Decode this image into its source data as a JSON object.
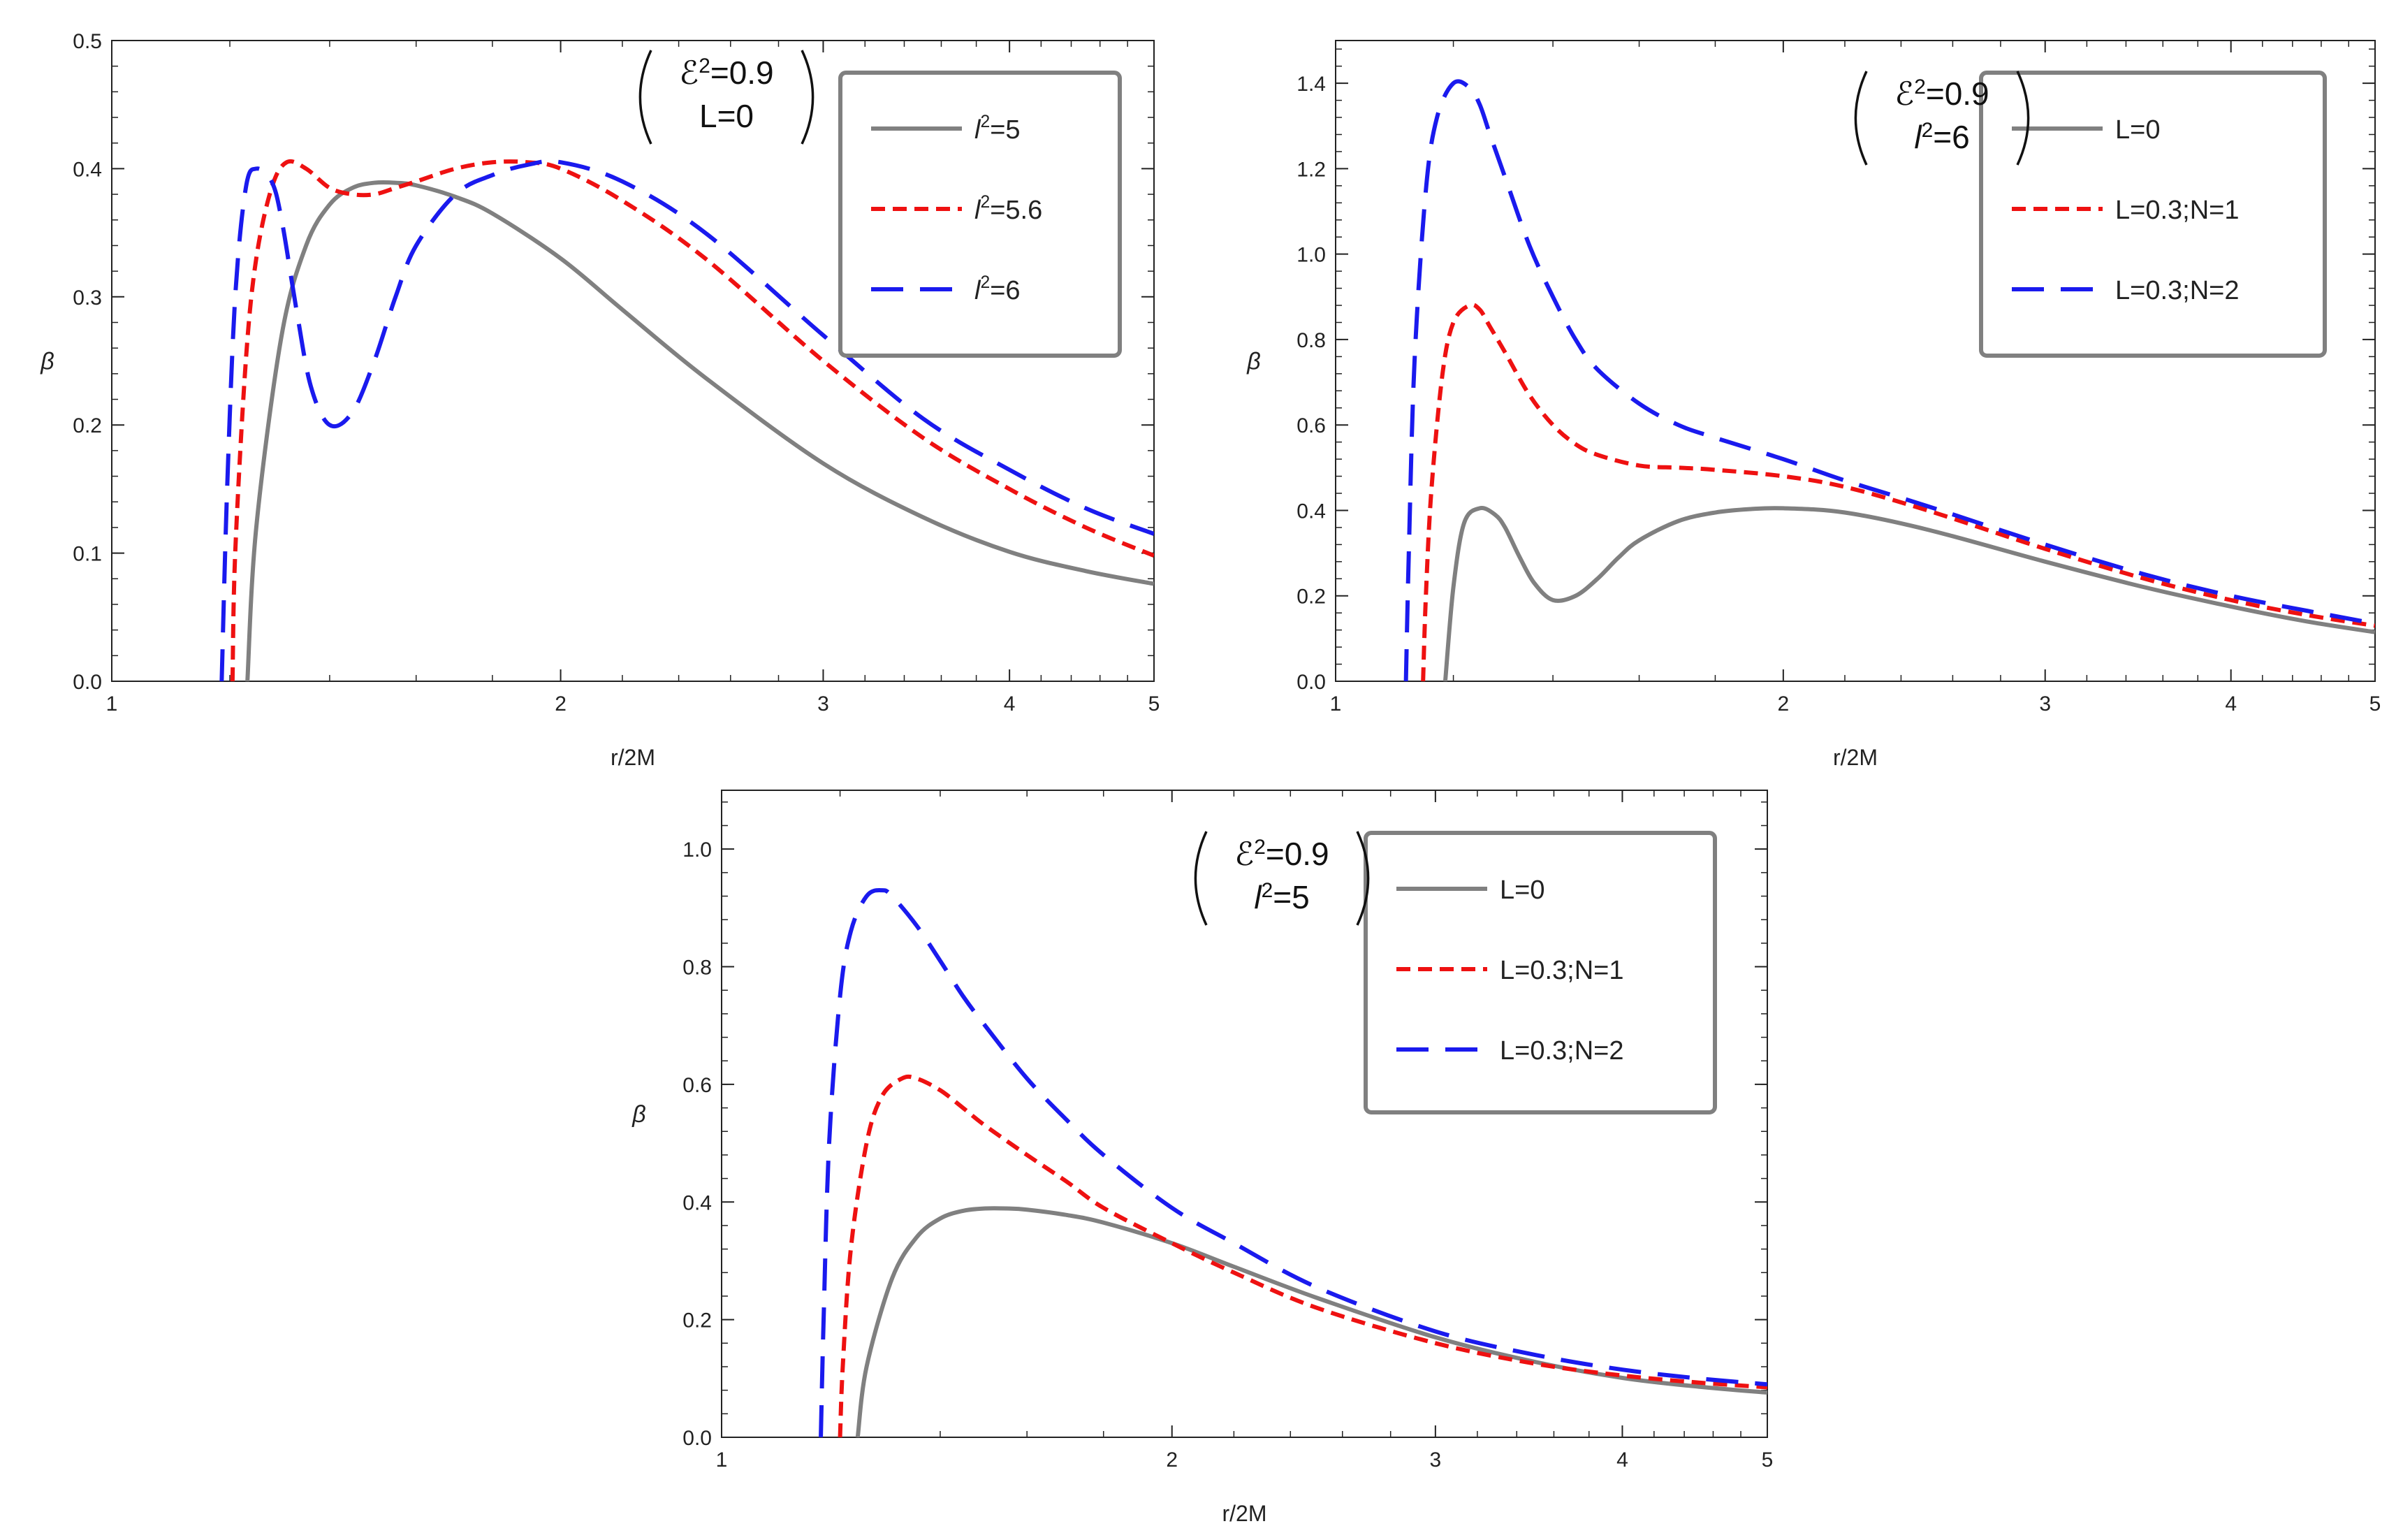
{
  "chart_data": [
    {
      "type": "line",
      "xlabel": "r/2M",
      "ylabel": "β",
      "xscale": "log",
      "xlim": [
        1,
        5
      ],
      "ylim": [
        0,
        0.5
      ],
      "xticks": [
        1,
        2,
        3,
        4,
        5
      ],
      "xtick_labels": [
        "1",
        "2",
        "3",
        "4",
        "5"
      ],
      "yticks": [
        0,
        0.1,
        0.2,
        0.3,
        0.4,
        0.5
      ],
      "ytick_labels": [
        "0.0",
        "0.1",
        "0.2",
        "0.3",
        "0.4",
        "0.5"
      ],
      "annotation": {
        "line1_sym": "ℰ",
        "line1_sup": "2",
        "line1_val": "=0.9",
        "line2": "L=0"
      },
      "legend_position": "top-right",
      "series": [
        {
          "label_sym": "l",
          "label_sup": "2",
          "label_rest": "=5",
          "color": "#808080",
          "style": "solid",
          "x": [
            1.233,
            1.25,
            1.3,
            1.35,
            1.4,
            1.45,
            1.5,
            1.55,
            1.6,
            1.7,
            1.8,
            2.0,
            2.2,
            2.5,
            3.0,
            3.5,
            4.0,
            4.5,
            5.0
          ],
          "y": [
            0.0,
            0.12,
            0.27,
            0.34,
            0.372,
            0.385,
            0.389,
            0.389,
            0.387,
            0.378,
            0.365,
            0.33,
            0.29,
            0.237,
            0.17,
            0.128,
            0.101,
            0.086,
            0.076
          ]
        },
        {
          "label_sym": "l",
          "label_sup": "2",
          "label_rest": "=5.6",
          "color": "#ee1111",
          "style": "short-dash",
          "x": [
            1.205,
            1.21,
            1.23,
            1.25,
            1.28,
            1.31,
            1.35,
            1.4,
            1.45,
            1.5,
            1.55,
            1.6,
            1.7,
            1.8,
            1.9,
            2.0,
            2.2,
            2.5,
            3.0,
            3.5,
            4.0,
            4.5,
            5.0
          ],
          "y": [
            0.0,
            0.1,
            0.25,
            0.33,
            0.385,
            0.405,
            0.4,
            0.385,
            0.38,
            0.38,
            0.385,
            0.39,
            0.4,
            0.405,
            0.405,
            0.4,
            0.375,
            0.33,
            0.25,
            0.19,
            0.15,
            0.12,
            0.098
          ]
        },
        {
          "label_sym": "l",
          "label_sup": "2",
          "label_rest": "=6",
          "color": "#1a1aee",
          "style": "long-dash",
          "x": [
            1.185,
            1.195,
            1.21,
            1.23,
            1.25,
            1.28,
            1.3,
            1.33,
            1.36,
            1.4,
            1.45,
            1.5,
            1.55,
            1.6,
            1.7,
            1.8,
            1.9,
            2.0,
            2.2,
            2.5,
            3.0,
            3.5,
            4.0,
            4.5,
            5.0
          ],
          "y": [
            0.0,
            0.15,
            0.3,
            0.385,
            0.4,
            0.39,
            0.36,
            0.29,
            0.23,
            0.2,
            0.21,
            0.25,
            0.3,
            0.34,
            0.38,
            0.395,
            0.403,
            0.405,
            0.39,
            0.35,
            0.27,
            0.205,
            0.165,
            0.135,
            0.115
          ]
        }
      ]
    },
    {
      "type": "line",
      "xlabel": "r/2M",
      "ylabel": "β",
      "xscale": "log",
      "xlim": [
        1,
        5
      ],
      "ylim": [
        0,
        1.5
      ],
      "xticks": [
        1,
        2,
        3,
        4,
        5
      ],
      "xtick_labels": [
        "1",
        "2",
        "3",
        "4",
        "5"
      ],
      "yticks": [
        0,
        0.2,
        0.4,
        0.6,
        0.8,
        1.0,
        1.2,
        1.4
      ],
      "ytick_labels": [
        "0.0",
        "0.2",
        "0.4",
        "0.6",
        "0.8",
        "1.0",
        "1.2",
        "1.4"
      ],
      "annotation": {
        "line1_sym": "ℰ",
        "line1_sup": "2",
        "line1_val": "=0.9",
        "line2_sym": "l",
        "line2_sup": "2",
        "line2_rest": "=6"
      },
      "legend_position": "top-right",
      "series": [
        {
          "label": "L=0",
          "color": "#808080",
          "style": "solid",
          "x": [
            1.185,
            1.2,
            1.22,
            1.25,
            1.28,
            1.3,
            1.33,
            1.36,
            1.4,
            1.45,
            1.5,
            1.55,
            1.6,
            1.7,
            1.8,
            1.9,
            2.0,
            2.2,
            2.5,
            3.0,
            3.5,
            4.0,
            4.5,
            5.0
          ],
          "y": [
            0.0,
            0.22,
            0.37,
            0.405,
            0.39,
            0.36,
            0.29,
            0.23,
            0.19,
            0.2,
            0.24,
            0.29,
            0.33,
            0.375,
            0.395,
            0.403,
            0.405,
            0.395,
            0.355,
            0.28,
            0.22,
            0.175,
            0.14,
            0.115
          ]
        },
        {
          "label": "L=0.3;N=1",
          "color": "#ee1111",
          "style": "short-dash",
          "x": [
            1.145,
            1.15,
            1.16,
            1.18,
            1.2,
            1.23,
            1.25,
            1.27,
            1.3,
            1.35,
            1.4,
            1.45,
            1.5,
            1.6,
            1.7,
            1.8,
            2.0,
            2.2,
            2.5,
            3.0,
            3.5,
            4.0,
            4.5,
            5.0
          ],
          "y": [
            0.0,
            0.2,
            0.45,
            0.72,
            0.84,
            0.88,
            0.87,
            0.83,
            0.77,
            0.67,
            0.6,
            0.555,
            0.53,
            0.505,
            0.5,
            0.495,
            0.48,
            0.455,
            0.4,
            0.31,
            0.24,
            0.19,
            0.155,
            0.13
          ]
        },
        {
          "label": "L=0.3;N=2",
          "color": "#1a1aee",
          "style": "long-dash",
          "x": [
            1.115,
            1.12,
            1.13,
            1.15,
            1.17,
            1.2,
            1.23,
            1.25,
            1.27,
            1.3,
            1.35,
            1.4,
            1.45,
            1.5,
            1.6,
            1.7,
            1.8,
            2.0,
            2.2,
            2.5,
            3.0,
            3.5,
            4.0,
            4.5,
            5.0
          ],
          "y": [
            0.0,
            0.3,
            0.75,
            1.15,
            1.32,
            1.4,
            1.39,
            1.35,
            1.28,
            1.18,
            1.02,
            0.9,
            0.8,
            0.73,
            0.65,
            0.6,
            0.57,
            0.52,
            0.47,
            0.41,
            0.32,
            0.25,
            0.2,
            0.165,
            0.135
          ]
        }
      ]
    },
    {
      "type": "line",
      "xlabel": "r/2M",
      "ylabel": "β",
      "xscale": "log",
      "xlim": [
        1,
        5
      ],
      "ylim": [
        0,
        1.1
      ],
      "xticks": [
        1,
        2,
        3,
        4,
        5
      ],
      "xtick_labels": [
        "1",
        "2",
        "3",
        "4",
        "5"
      ],
      "yticks": [
        0,
        0.2,
        0.4,
        0.6,
        0.8,
        1.0
      ],
      "ytick_labels": [
        "0.0",
        "0.2",
        "0.4",
        "0.6",
        "0.8",
        "1.0"
      ],
      "annotation": {
        "line1_sym": "ℰ",
        "line1_sup": "2",
        "line1_val": "=0.9",
        "line2_sym": "l",
        "line2_sup": "2",
        "line2_rest": "=5"
      },
      "legend_position": "top-right",
      "series": [
        {
          "label": "L=0",
          "color": "#808080",
          "style": "solid",
          "x": [
            1.233,
            1.25,
            1.3,
            1.35,
            1.4,
            1.45,
            1.5,
            1.55,
            1.6,
            1.7,
            1.8,
            2.0,
            2.2,
            2.5,
            3.0,
            3.5,
            4.0,
            4.5,
            5.0
          ],
          "y": [
            0.0,
            0.12,
            0.27,
            0.34,
            0.372,
            0.385,
            0.389,
            0.389,
            0.387,
            0.378,
            0.365,
            0.33,
            0.29,
            0.237,
            0.17,
            0.128,
            0.101,
            0.086,
            0.076
          ]
        },
        {
          "label": "L=0.3;N=1",
          "color": "#ee1111",
          "style": "short-dash",
          "x": [
            1.2,
            1.205,
            1.22,
            1.25,
            1.28,
            1.32,
            1.35,
            1.4,
            1.45,
            1.5,
            1.6,
            1.7,
            1.8,
            2.0,
            2.2,
            2.5,
            3.0,
            3.5,
            4.0,
            4.5,
            5.0
          ],
          "y": [
            0.0,
            0.12,
            0.32,
            0.5,
            0.58,
            0.61,
            0.61,
            0.59,
            0.56,
            0.53,
            0.48,
            0.435,
            0.39,
            0.33,
            0.28,
            0.22,
            0.16,
            0.125,
            0.105,
            0.093,
            0.085
          ]
        },
        {
          "label": "L=0.3;N=2",
          "color": "#1a1aee",
          "style": "long-dash",
          "x": [
            1.165,
            1.17,
            1.18,
            1.2,
            1.22,
            1.25,
            1.28,
            1.3,
            1.35,
            1.4,
            1.45,
            1.5,
            1.6,
            1.7,
            1.8,
            2.0,
            2.2,
            2.5,
            3.0,
            3.5,
            4.0,
            4.5,
            5.0
          ],
          "y": [
            0.0,
            0.2,
            0.5,
            0.75,
            0.86,
            0.92,
            0.93,
            0.92,
            0.87,
            0.81,
            0.75,
            0.7,
            0.61,
            0.54,
            0.48,
            0.39,
            0.33,
            0.255,
            0.18,
            0.14,
            0.115,
            0.1,
            0.09
          ]
        }
      ]
    }
  ]
}
